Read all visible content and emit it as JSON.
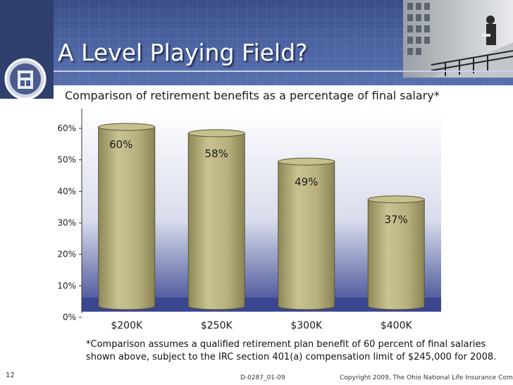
{
  "slide": {
    "title": "A Level Playing Field?",
    "subtitle": "Comparison of retirement benefits as a percentage of final salary*",
    "footnote_line1": "*Comparison assumes a qualified retirement plan benefit of 60 percent of final salaries",
    "footnote_line2": "shown above, subject to the IRC section 401(a) compensation limit of $245,000 for 2008.",
    "page_number": "12",
    "doc_code": "D-0287_01-09",
    "copyright": "Copyright 2009, The Ohio National Life Insurance Company"
  },
  "chart_data": {
    "type": "bar",
    "categories": [
      "$200K",
      "$250K",
      "$300K",
      "$400K"
    ],
    "values": [
      60,
      58,
      49,
      37
    ],
    "data_labels": [
      "60%",
      "58%",
      "49%",
      "37%"
    ],
    "title": "Comparison of retirement benefits as a percentage of final salary*",
    "xlabel": "",
    "ylabel": "",
    "ylim": [
      0,
      60
    ],
    "y_ticks": [
      "0%",
      "10%",
      "20%",
      "30%",
      "40%",
      "50%",
      "60%"
    ],
    "grid": false,
    "bar_style": "cylinder",
    "bar_color": "#b3ad7c",
    "plot_background": "gradient-white-to-blue"
  }
}
